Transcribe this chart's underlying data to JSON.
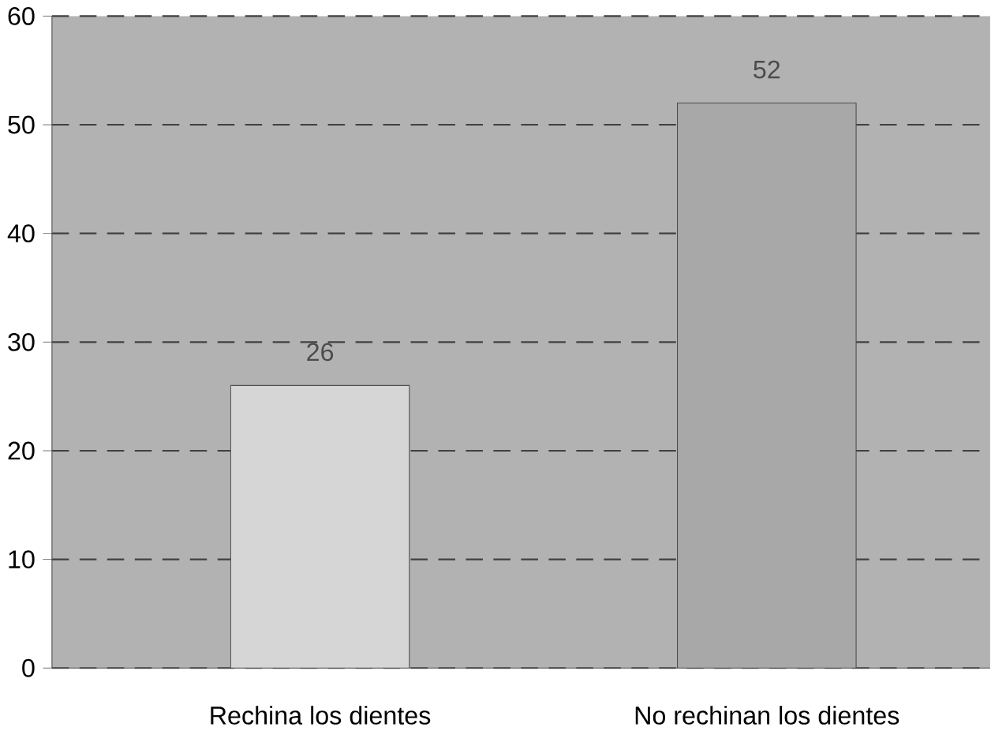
{
  "chart_data": {
    "type": "bar",
    "categories": [
      "Rechina los dientes",
      "No rechinan los dientes"
    ],
    "values": [
      26,
      52
    ],
    "colors": [
      "#d6d6d6",
      "#a8a8a8"
    ],
    "ylim": [
      0,
      60
    ],
    "yticks": [
      0,
      10,
      20,
      30,
      40,
      50,
      60
    ],
    "grid": "y",
    "data_labels": true
  }
}
